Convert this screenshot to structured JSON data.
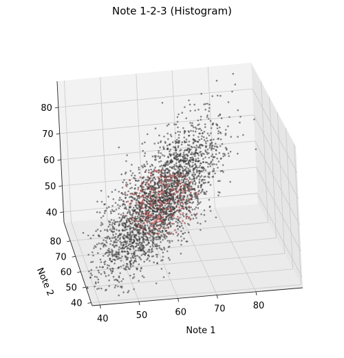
{
  "chart_data": {
    "type": "scatter",
    "title": "Note 1-2-3 (Histogram)",
    "xlabel": "Note 1",
    "ylabel": "Note 2",
    "zlabel": "",
    "x_ticks": [
      40,
      50,
      60,
      70,
      80
    ],
    "y_ticks": [
      40,
      50,
      60,
      70,
      80
    ],
    "z_ticks": [
      40,
      50,
      60,
      70,
      80
    ],
    "xlim": [
      38,
      92
    ],
    "ylim": [
      38,
      92
    ],
    "zlim": [
      36,
      90
    ],
    "grid": true,
    "view": "3d",
    "point_color": "#3a3a3a",
    "dense_core_color": "#b84a4a",
    "distribution": {
      "mean": [
        60,
        60,
        60
      ],
      "std": [
        9,
        9,
        9
      ],
      "correlation": 0.85,
      "count": 3000
    }
  }
}
